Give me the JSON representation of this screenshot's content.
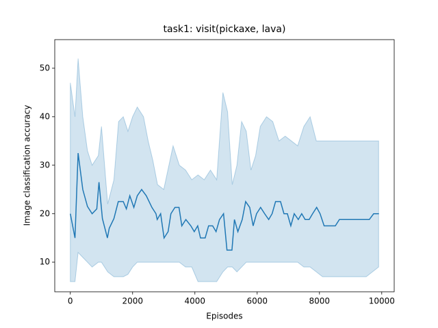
{
  "chart_data": {
    "type": "line",
    "title": "task1: visit(pickaxe, lava)",
    "xlabel": "Episodes",
    "ylabel": "Image classification accuracy",
    "xlim": [
      -500,
      10400
    ],
    "ylim": [
      3.9,
      55.9
    ],
    "xticks": [
      0,
      2000,
      4000,
      6000,
      8000,
      10000
    ],
    "yticks": [
      10,
      20,
      30,
      40,
      50
    ],
    "series": [
      {
        "color": "#1f77b4",
        "x": [
          0,
          150,
          250,
          400,
          550,
          700,
          850,
          920,
          1030,
          1190,
          1250,
          1400,
          1540,
          1700,
          1800,
          1910,
          2040,
          2150,
          2290,
          2440,
          2620,
          2750,
          2790,
          2900,
          3010,
          3140,
          3230,
          3360,
          3490,
          3580,
          3710,
          3870,
          3980,
          4090,
          4180,
          4330,
          4440,
          4570,
          4680,
          4790,
          4920,
          5030,
          5190,
          5270,
          5380,
          5520,
          5630,
          5760,
          5870,
          5980,
          6110,
          6240,
          6370,
          6480,
          6590,
          6750,
          6860,
          6970,
          7080,
          7190,
          7320,
          7430,
          7540,
          7670,
          7780,
          7910,
          8020,
          8150,
          8510,
          8640,
          9600,
          9740,
          9910
        ],
        "values": [
          20,
          15,
          32.5,
          25,
          21.5,
          20,
          21,
          26.5,
          19,
          15,
          17,
          19,
          22.5,
          22.5,
          21,
          23.7,
          21.3,
          23.7,
          25,
          23.7,
          21.3,
          20,
          18.8,
          20,
          15,
          16.3,
          20,
          21.3,
          21.3,
          17.5,
          18.8,
          17.5,
          16.3,
          17.5,
          15,
          15,
          17.5,
          17.5,
          16.3,
          18.8,
          20,
          12.5,
          12.5,
          18.8,
          16.3,
          18.8,
          22.5,
          21.3,
          17.5,
          20,
          21.3,
          20,
          18.8,
          20,
          22.5,
          22.5,
          20,
          20,
          17.5,
          20,
          18.8,
          20,
          18.8,
          18.8,
          20,
          21.3,
          20,
          17.5,
          17.5,
          18.8,
          18.8,
          20,
          20
        ]
      }
    ],
    "band": {
      "color": "#1f77b4",
      "x": [
        0,
        150,
        250,
        400,
        550,
        700,
        900,
        1000,
        1100,
        1200,
        1400,
        1550,
        1700,
        1850,
        2000,
        2150,
        2350,
        2500,
        2650,
        2800,
        3000,
        3100,
        3300,
        3500,
        3700,
        3900,
        4100,
        4300,
        4500,
        4700,
        4900,
        5050,
        5200,
        5350,
        5500,
        5650,
        5800,
        5950,
        6100,
        6300,
        6500,
        6700,
        6900,
        7100,
        7300,
        7500,
        7700,
        7900,
        8100,
        8500,
        9000,
        9500,
        9900
      ],
      "upper": [
        47,
        40,
        52,
        40,
        33,
        30,
        32,
        38,
        30,
        22,
        27,
        39,
        40,
        37,
        40,
        42,
        40,
        35,
        31,
        26,
        25,
        28,
        34,
        30,
        29,
        27,
        28,
        27,
        29,
        27,
        45,
        41,
        26,
        30,
        39,
        37,
        29,
        32,
        38,
        40,
        39,
        35,
        36,
        35,
        34,
        38,
        40,
        35,
        35,
        35,
        35,
        35,
        35
      ],
      "lower": [
        6,
        6,
        12,
        11,
        10,
        9,
        10,
        10,
        9,
        8,
        7,
        7,
        7,
        7.5,
        9,
        10,
        10,
        10,
        10,
        10,
        10,
        10,
        10,
        10,
        9,
        9,
        6,
        6,
        6,
        6,
        8,
        9,
        9,
        8,
        9,
        10,
        10,
        10,
        10,
        10,
        10,
        10,
        10,
        10,
        10,
        9,
        9,
        8,
        7,
        7,
        7,
        7,
        9
      ]
    }
  }
}
